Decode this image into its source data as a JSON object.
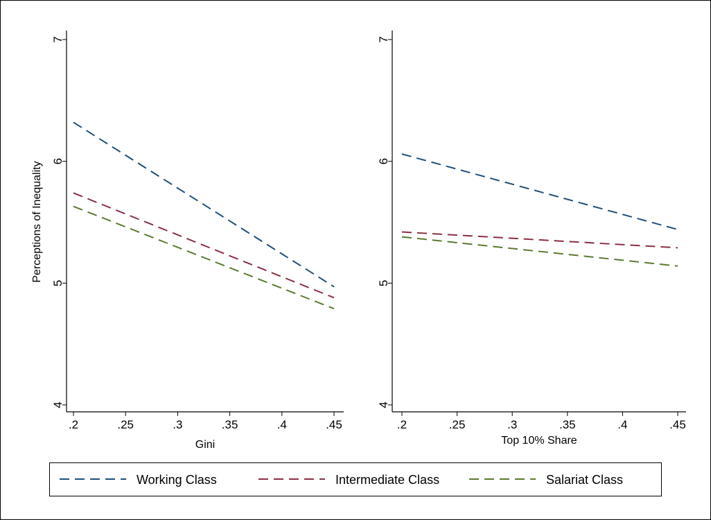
{
  "chart_data": [
    {
      "type": "line",
      "xlabel": "Gini",
      "ylabel": "Perceptions of Inequality",
      "xlim": [
        0.2,
        0.45
      ],
      "ylim": [
        4,
        7
      ],
      "x_ticks": [
        0.2,
        0.25,
        0.3,
        0.35,
        0.4,
        0.45
      ],
      "x_tick_labels": [
        ".2",
        ".25",
        ".3",
        ".35",
        ".4",
        ".45"
      ],
      "y_ticks": [
        4,
        5,
        6,
        7
      ],
      "y_tick_labels": [
        "4",
        "5",
        "6",
        "7"
      ],
      "grid": false,
      "series": [
        {
          "name": "Working Class",
          "x": [
            0.2,
            0.45
          ],
          "y": [
            6.32,
            4.97
          ],
          "color": "#1f4e79"
        },
        {
          "name": "Intermediate Class",
          "x": [
            0.2,
            0.45
          ],
          "y": [
            5.74,
            4.88
          ],
          "color": "#8b2e43"
        },
        {
          "name": "Salariat Class",
          "x": [
            0.2,
            0.45
          ],
          "y": [
            5.63,
            4.79
          ],
          "color": "#5a7a2e"
        }
      ]
    },
    {
      "type": "line",
      "xlabel": "Top 10% Share",
      "ylabel": "",
      "xlim": [
        0.2,
        0.45
      ],
      "ylim": [
        4,
        7
      ],
      "x_ticks": [
        0.2,
        0.25,
        0.3,
        0.35,
        0.4,
        0.45
      ],
      "x_tick_labels": [
        ".2",
        ".25",
        ".3",
        ".35",
        ".4",
        ".45"
      ],
      "y_ticks": [
        4,
        5,
        6,
        7
      ],
      "y_tick_labels": [
        "4",
        "5",
        "6",
        "7"
      ],
      "grid": false,
      "series": [
        {
          "name": "Working Class",
          "x": [
            0.2,
            0.45
          ],
          "y": [
            6.06,
            5.44
          ],
          "color": "#1f4e79"
        },
        {
          "name": "Intermediate Class",
          "x": [
            0.2,
            0.45
          ],
          "y": [
            5.42,
            5.29
          ],
          "color": "#8b2e43"
        },
        {
          "name": "Salariat Class",
          "x": [
            0.2,
            0.45
          ],
          "y": [
            5.38,
            5.14
          ],
          "color": "#5a7a2e"
        }
      ]
    }
  ],
  "legend": {
    "placement": "bottom",
    "items": [
      {
        "name": "Working Class",
        "color": "#1f4e79"
      },
      {
        "name": "Intermediate Class",
        "color": "#8b2e43"
      },
      {
        "name": "Salariat Class",
        "color": "#5a7a2e"
      }
    ]
  }
}
